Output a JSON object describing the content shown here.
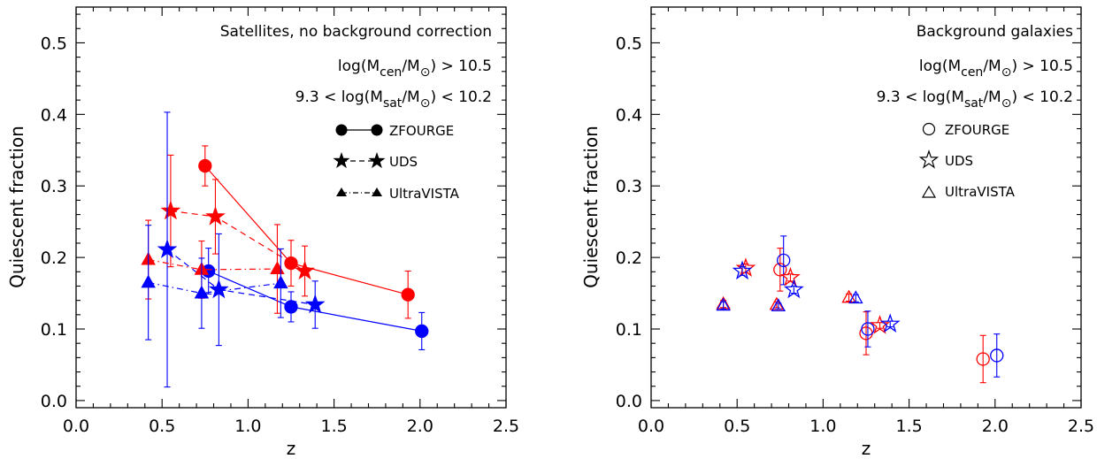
{
  "chart_data": [
    {
      "type": "scatter",
      "panel": "left",
      "xlabel": "z",
      "ylabel": "Quiescent fraction",
      "xlim": [
        0.0,
        2.5
      ],
      "ylim": [
        -0.01,
        0.55
      ],
      "x_ticks": [
        "0.0",
        "0.5",
        "1.0",
        "1.5",
        "2.0",
        "2.5"
      ],
      "y_ticks": [
        "0.0",
        "0.1",
        "0.2",
        "0.3",
        "0.4",
        "0.5"
      ],
      "annotations": {
        "line1": "Satellites, no background correction",
        "line2_pre": "log(M",
        "line2_sub1": "cen",
        "line2_mid": "/M",
        "line2_sub2": "⊙",
        "line2_post": ") > 10.5",
        "line3_pre": "9.3 < log(M",
        "line3_sub1": "sat",
        "line3_mid": "/M",
        "line3_sub2": "⊙",
        "line3_post": ") < 10.2"
      },
      "legend": [
        "ZFOURGE",
        "UDS",
        "UltraVISTA"
      ],
      "legend_placement": "top-right",
      "colors": {
        "red": "#ff0000",
        "blue": "#0000ff"
      },
      "series": [
        {
          "survey": "ZFOURGE",
          "marker": "circle",
          "filled": true,
          "line": "solid",
          "color": "red",
          "points": [
            [
              0.75,
              0.328,
              0.028,
              0.028
            ],
            [
              1.25,
              0.192,
              0.032,
              0.032
            ],
            [
              1.93,
              0.148,
              0.033,
              0.033
            ]
          ]
        },
        {
          "survey": "ZFOURGE",
          "marker": "circle",
          "filled": true,
          "line": "solid",
          "color": "blue",
          "points": [
            [
              0.77,
              0.181,
              0.032,
              0.032
            ],
            [
              1.25,
              0.131,
              0.021,
              0.021
            ],
            [
              2.01,
              0.097,
              0.026,
              0.026
            ]
          ]
        },
        {
          "survey": "UDS",
          "marker": "star",
          "filled": true,
          "line": "dashed",
          "color": "red",
          "points": [
            [
              0.55,
              0.265,
              0.078,
              0.078
            ],
            [
              0.81,
              0.257,
              0.052,
              0.052
            ],
            [
              1.33,
              0.181,
              0.035,
              0.035
            ]
          ]
        },
        {
          "survey": "UDS",
          "marker": "star",
          "filled": true,
          "line": "dashed",
          "color": "blue",
          "points": [
            [
              0.53,
              0.211,
              0.192,
              0.192
            ],
            [
              0.83,
              0.155,
              0.078,
              0.078
            ],
            [
              1.39,
              0.134,
              0.033,
              0.033
            ]
          ]
        },
        {
          "survey": "UltraVISTA",
          "marker": "triangle",
          "filled": true,
          "line": "dashdot",
          "color": "red",
          "points": [
            [
              0.42,
              0.197,
              0.055,
              0.055
            ],
            [
              0.73,
              0.183,
              0.04,
              0.04
            ],
            [
              1.17,
              0.184,
              0.062,
              0.062
            ]
          ]
        },
        {
          "survey": "UltraVISTA",
          "marker": "triangle",
          "filled": true,
          "line": "dashdot",
          "color": "blue",
          "points": [
            [
              0.42,
              0.165,
              0.08,
              0.08
            ],
            [
              0.73,
              0.15,
              0.049,
              0.049
            ],
            [
              1.19,
              0.164,
              0.048,
              0.048
            ]
          ]
        }
      ]
    },
    {
      "type": "scatter",
      "panel": "right",
      "xlabel": "z",
      "ylabel": "Quiescent fraction",
      "xlim": [
        0.0,
        2.5
      ],
      "ylim": [
        -0.01,
        0.55
      ],
      "x_ticks": [
        "0.0",
        "0.5",
        "1.0",
        "1.5",
        "2.0",
        "2.5"
      ],
      "y_ticks": [
        "0.0",
        "0.1",
        "0.2",
        "0.3",
        "0.4",
        "0.5"
      ],
      "annotations": {
        "line1": "Background galaxies",
        "line2_pre": "log(M",
        "line2_sub1": "cen",
        "line2_mid": "/M",
        "line2_sub2": "⊙",
        "line2_post": ") > 10.5",
        "line3_pre": "9.3 < log(M",
        "line3_sub1": "sat",
        "line3_mid": "/M",
        "line3_sub2": "⊙",
        "line3_post": ") < 10.2"
      },
      "legend": [
        "ZFOURGE",
        "UDS",
        "UltraVISTA"
      ],
      "legend_placement": "top-right",
      "colors": {
        "red": "#ff0000",
        "blue": "#0000ff"
      },
      "series": [
        {
          "survey": "ZFOURGE",
          "marker": "circle",
          "filled": false,
          "line": "none",
          "color": "red",
          "points": [
            [
              0.75,
              0.183,
              0.03,
              0.03
            ],
            [
              1.25,
              0.094,
              0.03,
              0.03
            ],
            [
              1.93,
              0.058,
              0.033,
              0.033
            ]
          ]
        },
        {
          "survey": "ZFOURGE",
          "marker": "circle",
          "filled": false,
          "line": "none",
          "color": "blue",
          "points": [
            [
              0.77,
              0.196,
              0.034,
              0.034
            ],
            [
              1.26,
              0.1,
              0.025,
              0.025
            ],
            [
              2.01,
              0.063,
              0.03,
              0.03
            ]
          ]
        },
        {
          "survey": "UDS",
          "marker": "star",
          "filled": false,
          "line": "none",
          "color": "red",
          "points": [
            [
              0.55,
              0.185,
              0.006,
              0.006
            ],
            [
              0.81,
              0.172,
              0.005,
              0.005
            ],
            [
              1.33,
              0.105,
              0.004,
              0.004
            ]
          ]
        },
        {
          "survey": "UDS",
          "marker": "star",
          "filled": false,
          "line": "none",
          "color": "blue",
          "points": [
            [
              0.53,
              0.181,
              0.006,
              0.006
            ],
            [
              0.83,
              0.155,
              0.005,
              0.005
            ],
            [
              1.39,
              0.107,
              0.004,
              0.004
            ]
          ]
        },
        {
          "survey": "UltraVISTA",
          "marker": "triangle",
          "filled": false,
          "line": "none",
          "color": "red",
          "points": [
            [
              0.42,
              0.135,
              0.005,
              0.005
            ],
            [
              0.73,
              0.134,
              0.004,
              0.004
            ],
            [
              1.15,
              0.144,
              0.005,
              0.005
            ]
          ]
        },
        {
          "survey": "UltraVISTA",
          "marker": "triangle",
          "filled": false,
          "line": "none",
          "color": "blue",
          "points": [
            [
              0.42,
              0.133,
              0.005,
              0.005
            ],
            [
              0.74,
              0.132,
              0.004,
              0.004
            ],
            [
              1.19,
              0.143,
              0.005,
              0.005
            ]
          ]
        }
      ]
    }
  ]
}
